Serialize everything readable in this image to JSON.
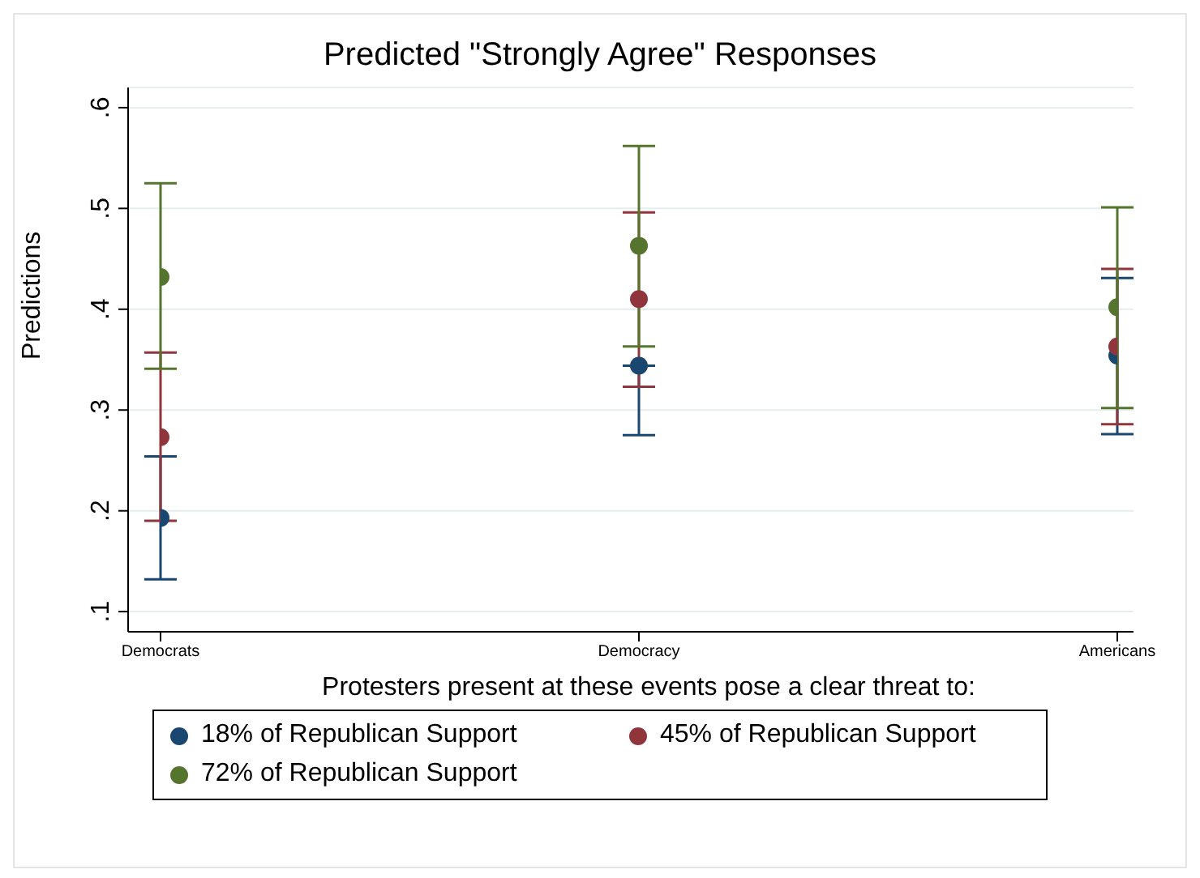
{
  "chart_data": {
    "type": "scatter",
    "title": "Predicted \"Strongly Agree\" Responses",
    "xlabel": "Protesters present at these events pose a clear threat to:",
    "ylabel": "Predictions",
    "categories": [
      "Democrats",
      "Democracy",
      "Americans"
    ],
    "series": [
      {
        "name": "18% of Republican Support",
        "color": "#1a476f",
        "values": [
          0.193,
          0.344,
          0.354
        ],
        "errors": [
          [
            0.132,
            0.254
          ],
          [
            0.275,
            0.344
          ],
          [
            0.276,
            0.431
          ]
        ]
      },
      {
        "name": "45% of Republican Support",
        "color": "#90353b",
        "values": [
          0.273,
          0.41,
          0.363
        ],
        "errors": [
          [
            0.19,
            0.357
          ],
          [
            0.323,
            0.496
          ],
          [
            0.286,
            0.44
          ]
        ]
      },
      {
        "name": "72% of Republican Support",
        "color": "#55752f",
        "values": [
          0.432,
          0.463,
          0.402
        ],
        "errors": [
          [
            0.341,
            0.525
          ],
          [
            0.363,
            0.562
          ],
          [
            0.302,
            0.501
          ]
        ]
      }
    ],
    "ylim": [
      0.08,
      0.62
    ],
    "yticks": [
      {
        "value": 0.1,
        "label": ".1"
      },
      {
        "value": 0.2,
        "label": ".2"
      },
      {
        "value": 0.3,
        "label": ".3"
      },
      {
        "value": 0.4,
        "label": ".4"
      },
      {
        "value": 0.5,
        "label": ".5"
      },
      {
        "value": 0.6,
        "label": ".6"
      }
    ],
    "grid": "y",
    "legend": "bottom",
    "marker": "circle"
  }
}
